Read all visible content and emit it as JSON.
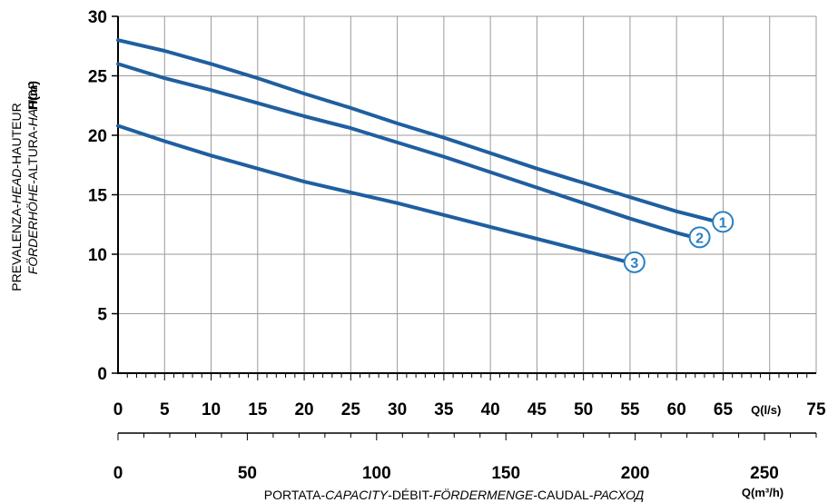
{
  "chart_data": {
    "type": "line",
    "x_unit_primary": "Q(l/s)",
    "x_unit_secondary": "Q(m³/h)",
    "xlabel_parts": [
      {
        "t": "PORTATA-",
        "i": false
      },
      {
        "t": "CAPACITY",
        "i": true
      },
      {
        "t": "-DÉBIT-",
        "i": false
      },
      {
        "t": "FÖRDERMENGE",
        "i": true
      },
      {
        "t": "-CAUDAL-",
        "i": false
      },
      {
        "t": "РАСХОД",
        "i": true
      }
    ],
    "ylabel_line1_parts": [
      {
        "t": "PREVALENZA-",
        "i": false
      },
      {
        "t": "HEAD",
        "i": true
      },
      {
        "t": "-HAUTEUR",
        "i": false
      }
    ],
    "ylabel_line2_parts": [
      {
        "t": "FÖRDERHÖHE",
        "i": true
      },
      {
        "t": "-ALTURA-",
        "i": false
      },
      {
        "t": "НАПОР",
        "i": true
      }
    ],
    "ylabel_unit": "H(m)",
    "xlim": [
      0,
      75
    ],
    "ylim": [
      0,
      30
    ],
    "x_ticks": [
      0,
      5,
      10,
      15,
      20,
      25,
      30,
      35,
      40,
      45,
      50,
      55,
      60,
      65
    ],
    "x_tick_last": "75",
    "y_ticks": [
      0,
      5,
      10,
      15,
      20,
      25,
      30
    ],
    "secondary_ticks": [
      0,
      50,
      100,
      150,
      200,
      250
    ],
    "grid": true,
    "line_color": "#1f5fa0",
    "label_color": "#2a7fc1",
    "series": [
      {
        "name": "1",
        "x": [
          0,
          5,
          10,
          15,
          20,
          25,
          30,
          35,
          40,
          45,
          50,
          55,
          60,
          64
        ],
        "y": [
          28.0,
          27.1,
          26.0,
          24.8,
          23.5,
          22.3,
          21.0,
          19.8,
          18.5,
          17.2,
          16.0,
          14.8,
          13.6,
          12.8
        ]
      },
      {
        "name": "2",
        "x": [
          0,
          5,
          10,
          15,
          20,
          25,
          30,
          35,
          40,
          45,
          50,
          55,
          60,
          61.5
        ],
        "y": [
          26.0,
          24.8,
          23.8,
          22.7,
          21.6,
          20.6,
          19.4,
          18.2,
          16.9,
          15.6,
          14.3,
          13.0,
          11.8,
          11.5
        ]
      },
      {
        "name": "3",
        "x": [
          0,
          5,
          10,
          15,
          20,
          25,
          30,
          35,
          40,
          45,
          50,
          54.5
        ],
        "y": [
          20.8,
          19.5,
          18.3,
          17.2,
          16.1,
          15.2,
          14.3,
          13.3,
          12.3,
          11.3,
          10.3,
          9.4
        ]
      }
    ]
  }
}
